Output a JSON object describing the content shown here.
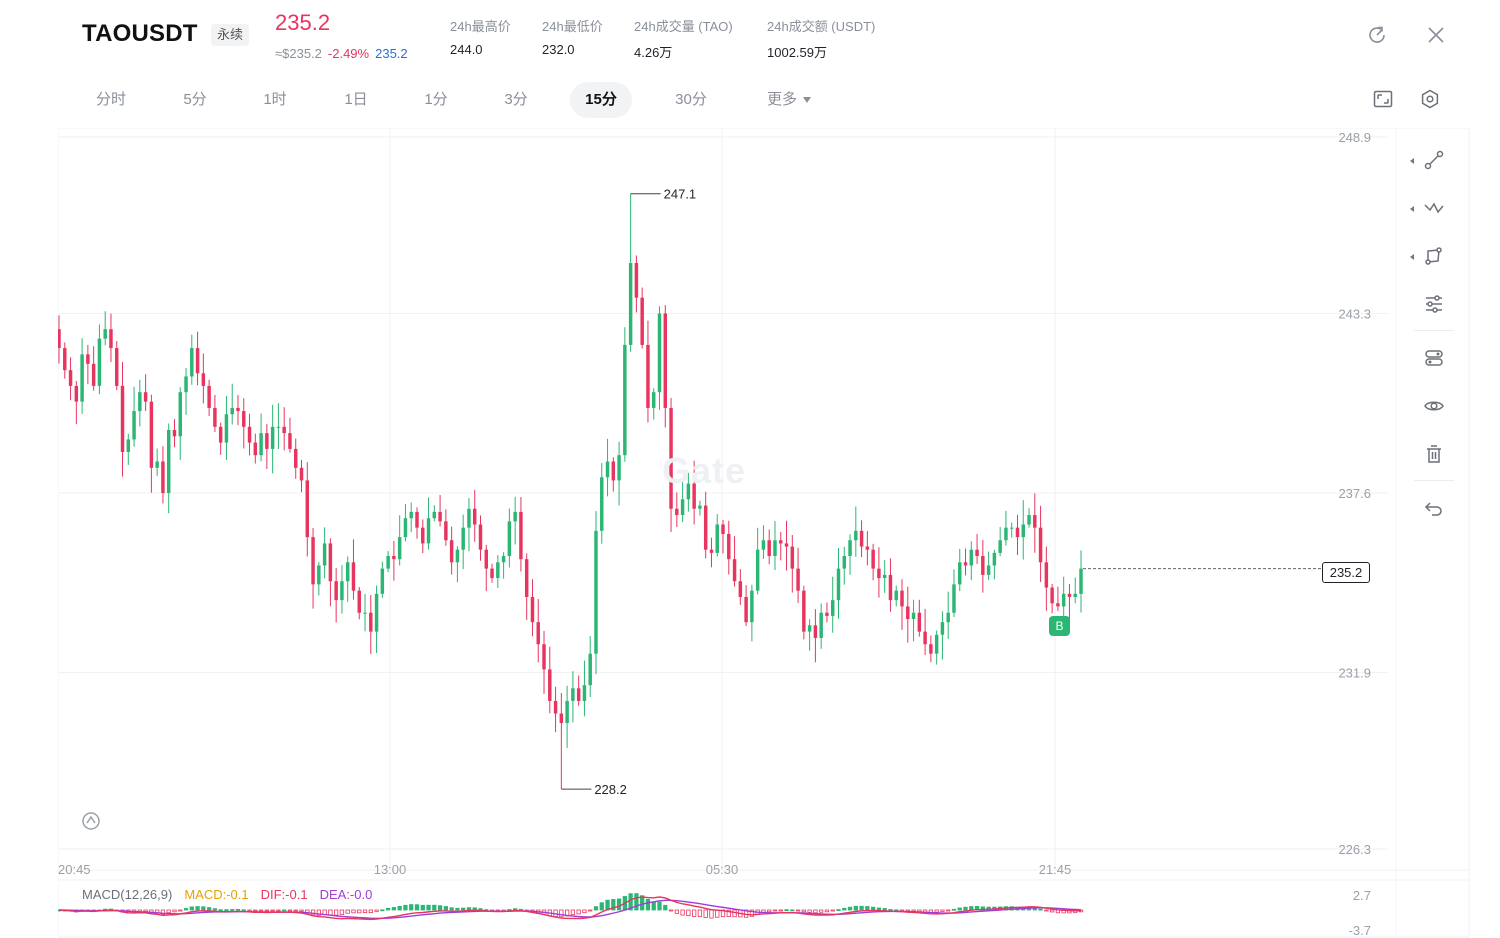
{
  "header": {
    "symbol": "TAOUSDT",
    "contract_type": "永续",
    "last_price": "235.2",
    "approx_price": "≈$235.2",
    "change_pct": "-2.49%",
    "mark_price": "235.2",
    "stats": [
      {
        "label": "24h最高价",
        "value": "244.0"
      },
      {
        "label": "24h最低价",
        "value": "232.0"
      },
      {
        "label": "24h成交量 (TAO)",
        "value": "4.26万"
      },
      {
        "label": "24h成交额 (USDT)",
        "value": "1002.59万"
      }
    ],
    "icons": {
      "refresh": "refresh-icon",
      "close": "close-icon"
    }
  },
  "toolbar": {
    "intervals": [
      "分时",
      "5分",
      "1时",
      "1日",
      "1分",
      "3分",
      "15分",
      "30分",
      "更多"
    ],
    "active_interval": "15分",
    "icons": {
      "fullscreen": "fullscreen-icon",
      "settings": "settings-icon"
    }
  },
  "sidebar": {
    "tools": [
      "line-tool-icon",
      "wave-tool-icon",
      "shape-tool-icon",
      "adjust-icon",
      "indicator-icon",
      "eye-icon",
      "trash-icon",
      "undo-icon"
    ]
  },
  "chart": {
    "watermark": "Gate",
    "marker": "B",
    "last_price_tag": "235.2",
    "macd": {
      "label": "MACD(12,26,9)",
      "macd": "MACD:-0.1",
      "dif": "DIF:-0.1",
      "dea": "DEA:-0.0"
    },
    "colors": {
      "up": "#2bb674",
      "down": "#e8355f",
      "dif": "#e8355f",
      "dea": "#a23cd6",
      "macd": "#e2a400",
      "grid": "#f0f1f3"
    }
  },
  "chart_data": {
    "type": "candlestick",
    "title": "",
    "y_ticks": [
      "248.9",
      "243.3",
      "237.6",
      "231.9",
      "226.3"
    ],
    "ylim": [
      226.3,
      248.9
    ],
    "x_ticks": [
      "20:45",
      "13:00",
      "05:30",
      "21:45"
    ],
    "high_label": "247.1",
    "low_label": "228.2",
    "last_price": 235.2,
    "macd_ticks": [
      "2.7",
      "-3.7"
    ],
    "ohlc_close": [
      242.2,
      241.5,
      241.0,
      240.5,
      242.0,
      241.7,
      241.0,
      242.5,
      242.8,
      242.2,
      241.0,
      238.9,
      239.3,
      240.2,
      240.8,
      240.5,
      238.4,
      238.6,
      237.6,
      239.6,
      239.4,
      240.8,
      241.3,
      242.2,
      241.4,
      241.0,
      240.3,
      239.7,
      239.2,
      240.1,
      240.3,
      240.2,
      239.7,
      239.2,
      238.8,
      239.5,
      239.0,
      239.7,
      239.7,
      239.5,
      239.0,
      238.4,
      238.0,
      236.2,
      234.7,
      235.3,
      236.0,
      234.8,
      234.2,
      234.8,
      235.4,
      234.5,
      233.8,
      233.8,
      233.2,
      234.4,
      235.2,
      235.6,
      235.5,
      236.2,
      236.8,
      237.0,
      236.5,
      236.0,
      236.8,
      237.0,
      236.7,
      236.1,
      235.4,
      235.8,
      236.5,
      237.1,
      236.6,
      235.8,
      235.2,
      234.9,
      235.4,
      235.6,
      236.7,
      237.0,
      235.5,
      234.3,
      233.5,
      232.8,
      232.0,
      231.0,
      230.6,
      230.3,
      231.0,
      231.4,
      231.0,
      231.5,
      232.5,
      236.4,
      238.1,
      238.6,
      238.0,
      238.8,
      242.3,
      244.9,
      243.8,
      242.3,
      240.3,
      240.8,
      243.3,
      240.3,
      237.1,
      236.9,
      237.4,
      237.9,
      237.1,
      237.2,
      235.8,
      235.7,
      236.6,
      236.3,
      235.5,
      234.8,
      234.3,
      233.5,
      234.5,
      235.8,
      236.1,
      235.6,
      236.1,
      236.0,
      235.9,
      235.2,
      234.5,
      233.2,
      233.4,
      233.0,
      233.8,
      233.7,
      234.2,
      235.2,
      235.6,
      236.1,
      236.4,
      235.9,
      235.8,
      235.2,
      234.9,
      235.0,
      234.2,
      234.5,
      234.0,
      233.6,
      233.8,
      233.2,
      232.8,
      232.5,
      233.1,
      233.5,
      233.8,
      234.7,
      235.4,
      235.3,
      235.8,
      235.6,
      235.0,
      235.3,
      235.7,
      236.1,
      236.5,
      236.5,
      236.2,
      236.6,
      236.9,
      236.5,
      235.4,
      234.6,
      234.1,
      234.0,
      234.4,
      234.3,
      234.4,
      235.2
    ]
  }
}
